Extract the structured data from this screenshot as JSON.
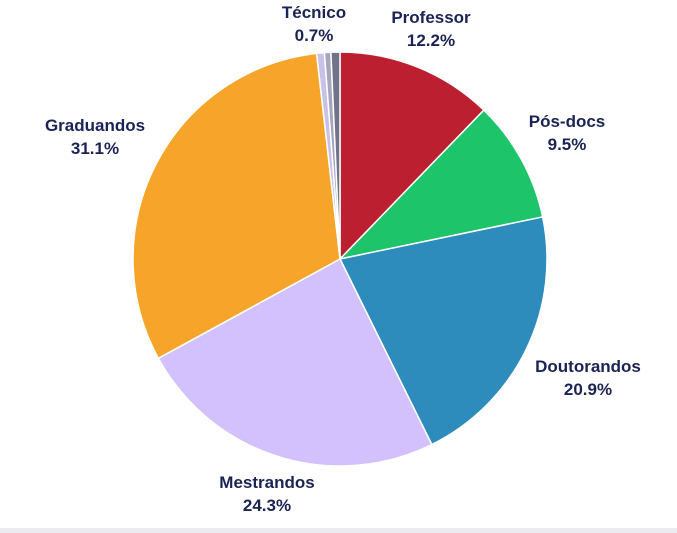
{
  "chart_data": {
    "type": "pie",
    "start_angle_deg": 0,
    "direction": "clockwise",
    "slices": [
      {
        "label": "Professor",
        "value": 12.2,
        "display": "12.2%",
        "color": "#bc1f2f"
      },
      {
        "label": "Pós-docs",
        "value": 9.5,
        "display": "9.5%",
        "color": "#1dc46a"
      },
      {
        "label": "Doutorandos",
        "value": 20.9,
        "display": "20.9%",
        "color": "#2d8cbb"
      },
      {
        "label": "Mestrandos",
        "value": 24.3,
        "display": "24.3%",
        "color": "#d3c1fd"
      },
      {
        "label": "Graduandos",
        "value": 31.1,
        "display": "31.1%",
        "color": "#f7a52a"
      },
      {
        "label": "",
        "value": 0.6,
        "display": "",
        "color": "#c9c2e6"
      },
      {
        "label": "",
        "value": 0.5,
        "display": "",
        "color": "#a4a6c0"
      },
      {
        "label": "Técnico",
        "value": 0.7,
        "display": "0.7%",
        "color": "#707489"
      }
    ]
  }
}
